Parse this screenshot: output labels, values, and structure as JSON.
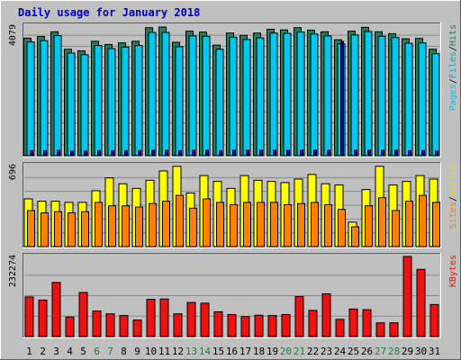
{
  "chart_data": {
    "type": "bar",
    "title": "Daily usage for January 2018",
    "categories": [
      "1",
      "2",
      "3",
      "4",
      "5",
      "6",
      "7",
      "8",
      "9",
      "10",
      "11",
      "12",
      "13",
      "14",
      "15",
      "16",
      "17",
      "18",
      "19",
      "20",
      "21",
      "22",
      "23",
      "24",
      "25",
      "26",
      "27",
      "28",
      "29",
      "30",
      "31"
    ],
    "weekend_days": [
      "6",
      "7",
      "13",
      "14",
      "20",
      "21",
      "27",
      "28"
    ],
    "colors": {
      "background": "#c0c0c0",
      "title": "#0000cc",
      "hits": "#20805a",
      "files": "#00c8f0",
      "pages": "#0000c8",
      "visits": "#ffff00",
      "sites": "#ff8000",
      "kbytes": "#ee1111",
      "weekend_label": "#208040",
      "weekday_label": "#000000",
      "grid": "#8a8a8a"
    },
    "panels": [
      {
        "id": "hits-files-pages",
        "max_label": "4079",
        "ymax": 4079,
        "right_label_parts": [
          {
            "text": "Pages",
            "color": "#00c8f0"
          },
          {
            "text": "/",
            "color": "#000000"
          },
          {
            "text": "Files",
            "color": "#00a8e0"
          },
          {
            "text": "/",
            "color": "#000000"
          },
          {
            "text": "Hits",
            "color": "#20805a"
          }
        ],
        "series": [
          {
            "name": "Hits",
            "values": [
              3700,
              3750,
              3900,
              3350,
              3300,
              3600,
              3500,
              3550,
              3600,
              4030,
              4050,
              3570,
              3920,
              3890,
              3480,
              3860,
              3790,
              3860,
              3980,
              3960,
              4030,
              3950,
              3900,
              3650,
              3920,
              4040,
              3900,
              3840,
              3680,
              3690,
              3350
            ]
          },
          {
            "name": "Files",
            "values": [
              3580,
              3620,
              3780,
              3230,
              3180,
              3470,
              3370,
              3420,
              3470,
              3880,
              3880,
              3430,
              3770,
              3760,
              3350,
              3730,
              3660,
              3710,
              3860,
              3850,
              3890,
              3830,
              3770,
              3520,
              3800,
              3910,
              3760,
              3720,
              3540,
              3550,
              3210
            ]
          },
          {
            "name": "Pages",
            "values": [
              160,
              160,
              170,
              150,
              150,
              160,
              160,
              160,
              160,
              170,
              170,
              160,
              170,
              170,
              160,
              170,
              170,
              170,
              170,
              170,
              170,
              170,
              170,
              3600,
              170,
              170,
              170,
              170,
              160,
              160,
              150
            ]
          }
        ]
      },
      {
        "id": "visits-sites",
        "max_label": "696",
        "ymax": 696,
        "right_label_parts": [
          {
            "text": "Sites",
            "color": "#ff8000"
          },
          {
            "text": "/",
            "color": "#000000"
          },
          {
            "text": "Visits",
            "color": "#e0e000"
          }
        ],
        "series": [
          {
            "name": "Visits",
            "values": [
              410,
              390,
              390,
              380,
              380,
              480,
              590,
              540,
              500,
              570,
              650,
              690,
              460,
              610,
              560,
              500,
              610,
              570,
              560,
              550,
              580,
              620,
              540,
              530,
              210,
              490,
              690,
              530,
              560,
              610,
              580
            ]
          },
          {
            "name": "Sites",
            "values": [
              310,
              290,
              300,
              290,
              300,
              380,
              350,
              350,
              340,
              370,
              390,
              440,
              330,
              410,
              380,
              360,
              380,
              380,
              380,
              360,
              370,
              380,
              360,
              320,
              170,
              350,
              420,
              310,
              390,
              440,
              380
            ]
          }
        ]
      },
      {
        "id": "kbytes",
        "max_label": "232274",
        "ymax": 232274,
        "right_label_parts": [
          {
            "text": "KBytes",
            "color": "#ee1111"
          }
        ],
        "series": [
          {
            "name": "KBytes",
            "values": [
              115000,
              106000,
              157000,
              57000,
              128000,
              74000,
              66000,
              61000,
              48000,
              108000,
              109000,
              66000,
              99000,
              97000,
              72000,
              64000,
              58000,
              62000,
              61000,
              64000,
              116000,
              76000,
              124000,
              50000,
              80000,
              78000,
              40000,
              40000,
              232274,
              195000,
              93000
            ]
          }
        ]
      }
    ]
  }
}
